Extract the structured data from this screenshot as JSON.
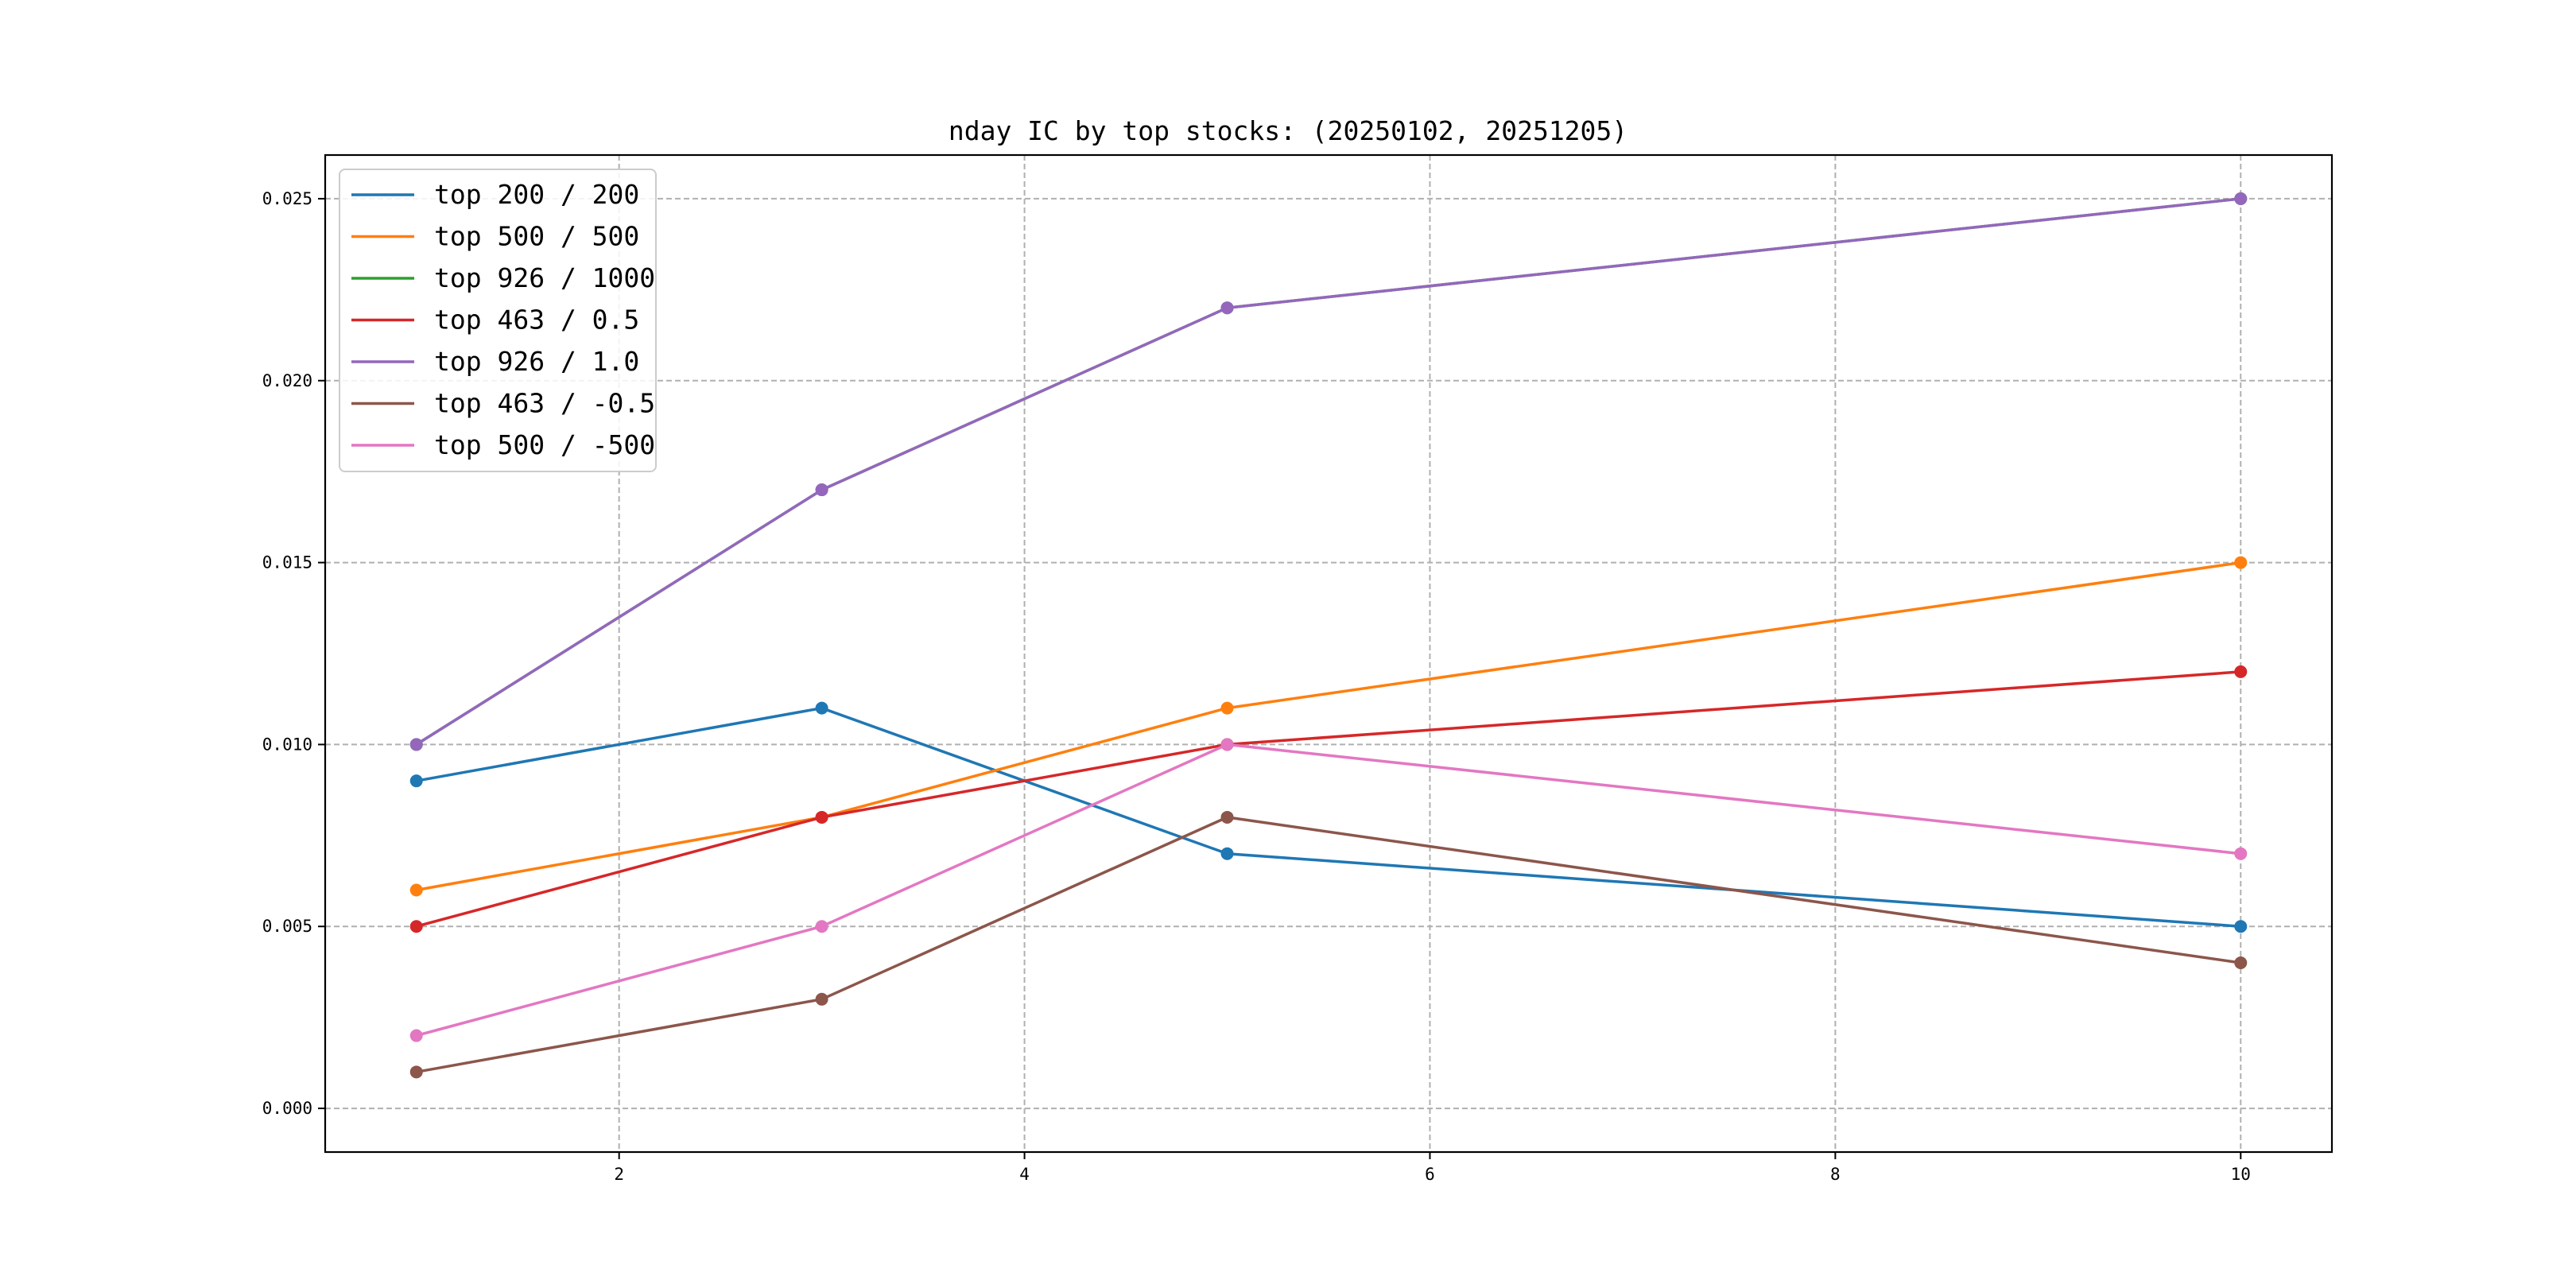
{
  "chart_data": {
    "type": "line",
    "title": "nday IC by top stocks: (20250102, 20251205)",
    "xlabel": "",
    "ylabel": "",
    "x": [
      1,
      3,
      5,
      10
    ],
    "xlim": [
      0.55,
      10.45
    ],
    "ylim": [
      -0.0012,
      0.0262
    ],
    "xticks": [
      2,
      4,
      6,
      8,
      10
    ],
    "xtick_labels": [
      "2",
      "4",
      "6",
      "8",
      "10"
    ],
    "yticks": [
      0.0,
      0.005,
      0.01,
      0.015,
      0.02,
      0.025
    ],
    "ytick_labels": [
      "0.000",
      "0.005",
      "0.010",
      "0.015",
      "0.020",
      "0.025"
    ],
    "grid": true,
    "legend_position": "upper-left",
    "series": [
      {
        "name": "top 200 / 200",
        "color": "#1f77b4",
        "values": [
          0.009,
          0.011,
          0.007,
          0.005
        ]
      },
      {
        "name": "top 500 / 500",
        "color": "#ff7f0e",
        "values": [
          0.006,
          0.008,
          0.011,
          0.015
        ]
      },
      {
        "name": "top 926 / 1000",
        "color": "#2ca02c",
        "values": [
          0.01,
          0.017,
          0.022,
          0.025
        ]
      },
      {
        "name": "top 463 / 0.5",
        "color": "#d62728",
        "values": [
          0.005,
          0.008,
          0.01,
          0.012
        ]
      },
      {
        "name": "top 926 / 1.0",
        "color": "#9467bd",
        "values": [
          0.01,
          0.017,
          0.022,
          0.025
        ]
      },
      {
        "name": "top 463 / -0.5",
        "color": "#8c564b",
        "values": [
          0.001,
          0.003,
          0.008,
          0.004
        ]
      },
      {
        "name": "top 500 / -500",
        "color": "#e377c2",
        "values": [
          0.002,
          0.005,
          0.01,
          0.007
        ]
      }
    ]
  }
}
